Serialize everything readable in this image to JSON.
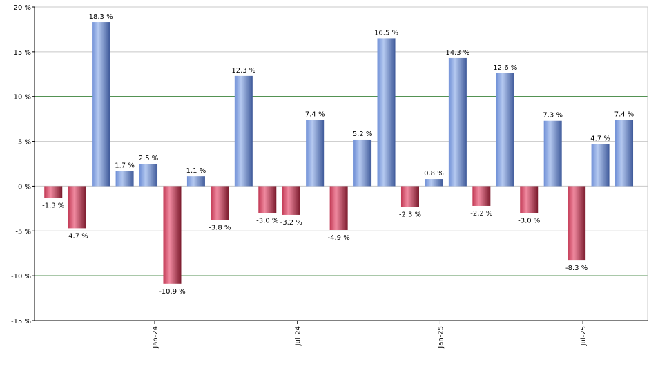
{
  "chart_data": {
    "type": "bar",
    "title": "",
    "xlabel": "",
    "ylabel": "",
    "ylim": [
      -15,
      20
    ],
    "y_ticks": [
      20,
      15,
      10,
      5,
      0,
      -5,
      -10,
      -15
    ],
    "y_tick_labels": [
      "20 %",
      "15 %",
      "10 %",
      "5 %",
      "0 %",
      "-5 %",
      "-10 %",
      "-15 %"
    ],
    "highlight_lines": [
      10,
      -10
    ],
    "x_tick_labels": [
      {
        "label": "Jan-24",
        "after_bar": 4
      },
      {
        "label": "Jul-24",
        "after_bar": 10
      },
      {
        "label": "Jan-25",
        "after_bar": 16
      },
      {
        "label": "Jul-25",
        "after_bar": 22
      }
    ],
    "values": [
      -1.3,
      -4.7,
      18.3,
      1.7,
      2.5,
      -10.9,
      1.1,
      -3.8,
      12.3,
      -3.0,
      -3.2,
      7.4,
      -4.9,
      5.2,
      16.5,
      -2.3,
      0.8,
      14.3,
      -2.2,
      12.6,
      -3.0,
      7.3,
      -8.3,
      4.7,
      7.4
    ],
    "labels": [
      "-1.3 %",
      "-4.7 %",
      "18.3 %",
      "1.7 %",
      "2.5 %",
      "-10.9 %",
      "1.1 %",
      "-3.8 %",
      "12.3 %",
      "-3.0 %",
      "-3.2 %",
      "7.4 %",
      "-4.9 %",
      "5.2 %",
      "16.5 %",
      "-2.3 %",
      "0.8 %",
      "14.3 %",
      "-2.2 %",
      "12.6 %",
      "-3.0 %",
      "7.3 %",
      "-8.3 %",
      "4.7 %",
      "7.4 %"
    ],
    "grid": true,
    "legend": "none",
    "colors": {
      "positive": "#7f9fdc",
      "negative": "#c8405a",
      "highlight_line": "#1a6e1a",
      "grid": "#c8c8c8",
      "axis": "#000000"
    }
  }
}
